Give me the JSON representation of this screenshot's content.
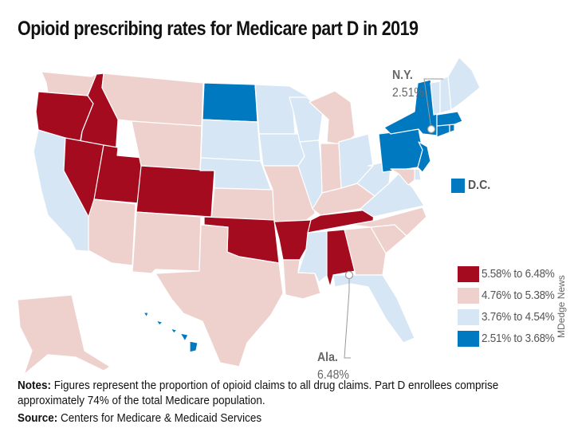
{
  "title": "Opioid prescribing rates for Medicare part D in 2019",
  "legend": [
    {
      "label": "5.58% to 6.48%",
      "color": "#a50b1e"
    },
    {
      "label": "4.76% to 5.38%",
      "color": "#eed1cd"
    },
    {
      "label": "3.76% to 4.54%",
      "color": "#d6e6f5"
    },
    {
      "label": "2.51% to 3.68%",
      "color": "#0079c1"
    }
  ],
  "callouts": {
    "ny": {
      "name": "N.Y.",
      "value": "2.51%"
    },
    "ala": {
      "name": "Ala.",
      "value": "6.48%"
    },
    "dc": {
      "name": "D.C."
    }
  },
  "credit": "MDedge News",
  "notes": {
    "label": "Notes:",
    "text": " Figures represent the proportion of opioid claims to all drug claims. Part D enrollees comprise approximately 74% of the total Medicare population."
  },
  "source": {
    "label": "Source:",
    "text": " Centers for Medicare & Medicaid Services"
  },
  "chart_data": {
    "type": "choropleth",
    "title": "Opioid prescribing rates for Medicare part D in 2019",
    "classes": [
      "5.58% to 6.48%",
      "4.76% to 5.38%",
      "3.76% to 4.54%",
      "2.51% to 3.68%"
    ],
    "states": {
      "WA": 1,
      "OR": 0,
      "CA": 2,
      "ID": 0,
      "NV": 0,
      "UT": 0,
      "AZ": 1,
      "MT": 1,
      "WY": 1,
      "CO": 0,
      "NM": 1,
      "ND": 3,
      "SD": 2,
      "NE": 2,
      "KS": 1,
      "OK": 0,
      "TX": 1,
      "MN": 2,
      "IA": 2,
      "MO": 1,
      "AR": 0,
      "LA": 1,
      "WI": 2,
      "IL": 2,
      "MS": 2,
      "MI": 1,
      "IN": 1,
      "KY": 1,
      "TN": 0,
      "AL": 0,
      "OH": 2,
      "WV": 2,
      "VA": 2,
      "NC": 1,
      "SC": 1,
      "GA": 1,
      "FL": 2,
      "PA": 3,
      "NY": 3,
      "NJ": 3,
      "DE": 2,
      "MD": 1,
      "CT": 3,
      "RI": 3,
      "MA": 3,
      "VT": 2,
      "NH": 2,
      "ME": 2,
      "AK": 1,
      "HI": 3,
      "DC": 3
    },
    "annotations": [
      {
        "state": "NY",
        "label": "N.Y.",
        "value": "2.51%"
      },
      {
        "state": "AL",
        "label": "Ala.",
        "value": "6.48%"
      },
      {
        "state": "DC",
        "label": "D.C.",
        "class": "2.51% to 3.68%"
      }
    ]
  }
}
